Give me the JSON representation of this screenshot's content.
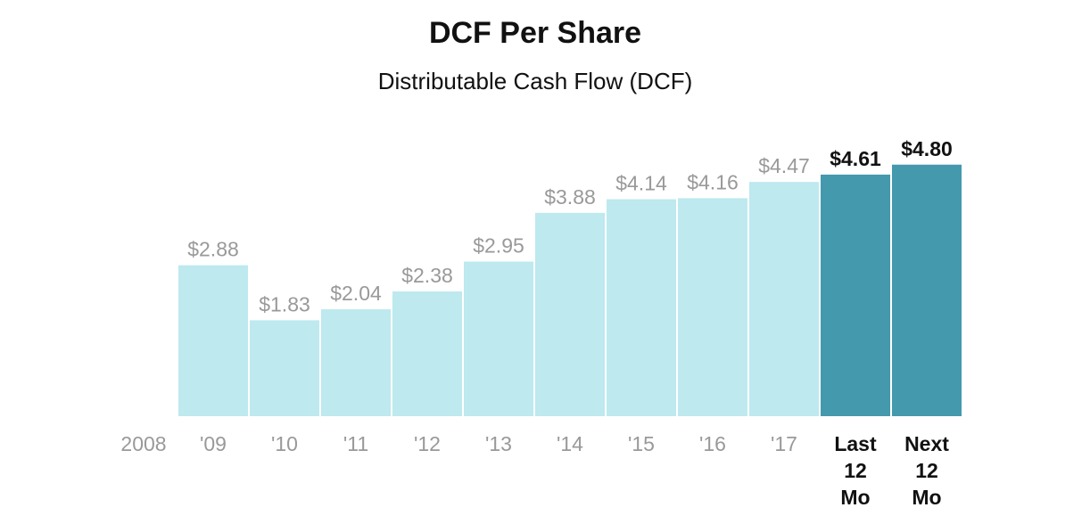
{
  "chart_data": {
    "type": "bar",
    "title": "DCF Per Share",
    "subtitle": "Distributable Cash Flow (DCF)",
    "xlabel": "",
    "ylabel": "",
    "ylim": [
      0,
      5
    ],
    "grid": false,
    "categories": [
      "2008",
      "'09",
      "'10",
      "'11",
      "'12",
      "'13",
      "'14",
      "'15",
      "'16",
      "'17",
      "Last 12 Mo",
      "Next 12 Mo"
    ],
    "category_lines": [
      [
        "2008"
      ],
      [
        "'09"
      ],
      [
        "'10"
      ],
      [
        "'11"
      ],
      [
        "'12"
      ],
      [
        "'13"
      ],
      [
        "'14"
      ],
      [
        "'15"
      ],
      [
        "'16"
      ],
      [
        "'17"
      ],
      [
        "Last",
        "12",
        "Mo"
      ],
      [
        "Next",
        "12",
        "Mo"
      ]
    ],
    "values": [
      null,
      2.88,
      1.83,
      2.04,
      2.38,
      2.95,
      3.88,
      4.14,
      4.16,
      4.47,
      4.61,
      4.8
    ],
    "value_labels": [
      "",
      "$2.88",
      "$1.83",
      "$2.04",
      "$2.38",
      "$2.95",
      "$3.88",
      "$4.14",
      "$4.16",
      "$4.47",
      "$4.61",
      "$4.80"
    ],
    "highlight": [
      false,
      false,
      false,
      false,
      false,
      false,
      false,
      false,
      false,
      false,
      true,
      true
    ],
    "colors": {
      "bar": "#bde9ef",
      "bar_highlight": "#4499ad",
      "label": "#999999",
      "label_highlight": "#111111"
    }
  }
}
